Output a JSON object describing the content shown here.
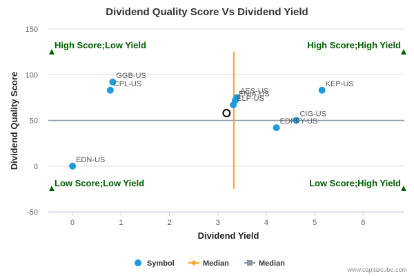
{
  "chart_data": {
    "type": "scatter",
    "title": "Dividend Quality Score Vs Dividend Yield",
    "xlabel": "Dividend Yield",
    "ylabel": "Dividend Quality Score",
    "xlim": [
      -0.5,
      6.85
    ],
    "ylim": [
      -50,
      150
    ],
    "xticks": [
      "0",
      "1",
      "2",
      "3",
      "4",
      "5",
      "6"
    ],
    "yticks": [
      "-50",
      "0",
      "50",
      "100",
      "150"
    ],
    "grid": {
      "x": false,
      "y": true
    },
    "points": [
      {
        "label": "GGB-US",
        "x": 0.83,
        "y": 92
      },
      {
        "label": "CPL-US",
        "x": 0.78,
        "y": 83
      },
      {
        "label": "AES-US",
        "x": 3.39,
        "y": 75
      },
      {
        "label": "ENIA-US",
        "x": 3.36,
        "y": 72
      },
      {
        "label": "ELP-US",
        "x": 3.32,
        "y": 67
      },
      {
        "label": "KEP-US",
        "x": 5.15,
        "y": 83
      },
      {
        "label": "CIG-US",
        "x": 4.62,
        "y": 50
      },
      {
        "label": "EDN-US",
        "x": 0.0,
        "y": 0
      },
      {
        "label": "EDPFY-US",
        "x": 4.21,
        "y": 42
      }
    ],
    "highlight_point": {
      "x": 3.18,
      "y": 58
    },
    "median_x": 3.33,
    "median_x_range": [
      -25,
      125
    ],
    "median_y": 50,
    "quadrants": {
      "top_left": "High Score;Low Yield",
      "top_right": "High Score;High Yield",
      "bottom_left": "Low Score;Low Yield",
      "bottom_right": "Low Score;High Yield"
    },
    "legend": {
      "placement": "bottom",
      "items": [
        {
          "name": "Symbol",
          "color": "#1e9be0"
        },
        {
          "name": "Median",
          "color": "#f5a623"
        },
        {
          "name": "Median",
          "color": "#8c96a3"
        }
      ]
    },
    "colors": {
      "points": "#1e9be0",
      "median_x": "#f5a623",
      "median_y": "#8c96a3",
      "quadrant_text": "#006100",
      "grid": "#d8d8d8"
    }
  },
  "credit": "www.capitalcube.com"
}
